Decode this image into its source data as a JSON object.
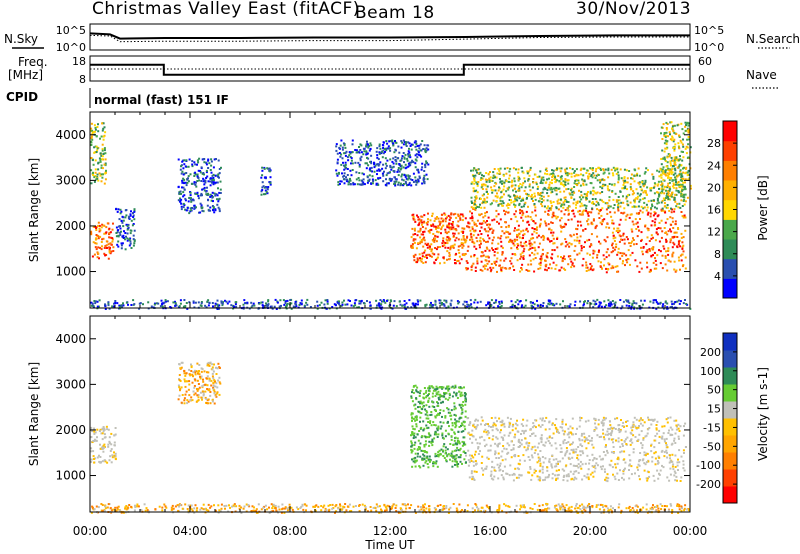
{
  "header": {
    "station": "Christmas Valley East (fitACF)",
    "beam": "Beam 18",
    "date": "30/Nov/2013"
  },
  "side_labels": {
    "nsky": "N.Sky",
    "nsearch": "N.Search",
    "freq": "Freq.",
    "freq_unit": "[MHz]",
    "nave": "Nave",
    "cpid": "CPID",
    "cpid_value": "normal (fast) 151 IF"
  },
  "colors": {
    "power_scale": [
      "#0000ff",
      "#2a4fb0",
      "#2e8b57",
      "#4aa84a",
      "#ffd700",
      "#ffb000",
      "#ff7f00",
      "#ff4000",
      "#ff0000"
    ],
    "velocity_scale": [
      "#ff0000",
      "#ff4000",
      "#ff7f00",
      "#ffa500",
      "#ffc000",
      "#c0c0b8",
      "#66cc33",
      "#2e8b57",
      "#2a4fb0",
      "#1030c0"
    ]
  },
  "chart_data": [
    {
      "type": "line",
      "name": "noise",
      "left_ticks": [
        "10^5",
        "10^0"
      ],
      "right_ticks": [
        "10^5",
        "10^0"
      ],
      "series": [
        {
          "name": "N.Sky",
          "x": [
            0,
            0.8,
            1.2,
            3,
            6,
            9,
            12,
            15,
            18,
            21,
            24
          ],
          "values": [
            3.2,
            3.0,
            2.2,
            2.3,
            2.3,
            2.4,
            2.4,
            2.5,
            2.7,
            2.8,
            2.8
          ]
        },
        {
          "name": "N.Search",
          "x": [
            0,
            0.8,
            1.2,
            3,
            6,
            9,
            12,
            15,
            18,
            21,
            24
          ],
          "values": [
            2.8,
            2.7,
            1.6,
            1.7,
            1.7,
            1.8,
            1.8,
            2.1,
            2.4,
            2.5,
            2.5
          ]
        }
      ]
    },
    {
      "type": "line",
      "name": "frequency",
      "left_ticks": [
        "18",
        "8"
      ],
      "right_ticks": [
        "60",
        "0"
      ],
      "series": [
        {
          "name": "Freq",
          "x": [
            0,
            2.95,
            2.95,
            14.95,
            14.95,
            24
          ],
          "values": [
            14.5,
            14.5,
            10.5,
            10.5,
            14.5,
            14.5
          ]
        },
        {
          "name": "Nave",
          "x": [
            0,
            24
          ],
          "values": [
            22,
            22
          ]
        }
      ]
    },
    {
      "type": "heatmap",
      "name": "power",
      "xlabel": "",
      "ylabel": "Slant Range [km]",
      "xlim": [
        0,
        24
      ],
      "ylim": [
        200,
        4500
      ],
      "yticks": [
        1000,
        2000,
        3000,
        4000
      ],
      "colorbar_label": "Power [dB]",
      "colorbar_ticks": [
        "28",
        "24",
        "20",
        "16",
        "12",
        "8",
        "4"
      ],
      "regions": [
        {
          "t0": 0.0,
          "t1": 0.9,
          "r0": 1300,
          "r1": 2100,
          "level": "high"
        },
        {
          "t0": 0.0,
          "t1": 0.6,
          "r0": 2900,
          "r1": 4300,
          "level": "mid"
        },
        {
          "t0": 1.0,
          "t1": 1.8,
          "r0": 1500,
          "r1": 2400,
          "level": "low"
        },
        {
          "t0": 3.5,
          "t1": 5.2,
          "r0": 2300,
          "r1": 3500,
          "level": "low"
        },
        {
          "t0": 6.8,
          "t1": 7.2,
          "r0": 2700,
          "r1": 3300,
          "level": "low"
        },
        {
          "t0": 9.8,
          "t1": 13.5,
          "r0": 2900,
          "r1": 3900,
          "level": "low"
        },
        {
          "t0": 12.8,
          "t1": 15.0,
          "r0": 1200,
          "r1": 2300,
          "level": "high"
        },
        {
          "t0": 15.0,
          "t1": 23.8,
          "r0": 1000,
          "r1": 2400,
          "level": "high"
        },
        {
          "t0": 15.2,
          "t1": 23.8,
          "r0": 2400,
          "r1": 3300,
          "level": "mid"
        },
        {
          "t0": 22.8,
          "t1": 24.0,
          "r0": 2600,
          "r1": 4300,
          "level": "mid"
        },
        {
          "t0": 0.0,
          "t1": 24.0,
          "r0": 200,
          "r1": 400,
          "level": "low"
        }
      ]
    },
    {
      "type": "heatmap",
      "name": "velocity",
      "xlabel": "Time UT",
      "ylabel": "Slant Range [km]",
      "xlim": [
        0,
        24
      ],
      "ylim": [
        200,
        4500
      ],
      "xticks": [
        "00:00",
        "04:00",
        "08:00",
        "12:00",
        "16:00",
        "20:00",
        "00:00"
      ],
      "yticks": [
        1000,
        2000,
        3000,
        4000
      ],
      "colorbar_label": "Velocity [m s-1]",
      "colorbar_ticks": [
        "200",
        "100",
        "50",
        "15",
        "-15",
        "-50",
        "-100",
        "-200"
      ],
      "regions": [
        {
          "t0": 0.0,
          "t1": 1.0,
          "r0": 1300,
          "r1": 2100,
          "level": "ground"
        },
        {
          "t0": 3.5,
          "t1": 5.2,
          "r0": 2600,
          "r1": 3500,
          "level": "neg"
        },
        {
          "t0": 12.8,
          "t1": 15.0,
          "r0": 1200,
          "r1": 3000,
          "level": "pos"
        },
        {
          "t0": 15.0,
          "t1": 23.8,
          "r0": 900,
          "r1": 2300,
          "level": "ground"
        },
        {
          "t0": 0.0,
          "t1": 24.0,
          "r0": 200,
          "r1": 400,
          "level": "neg"
        }
      ]
    }
  ]
}
